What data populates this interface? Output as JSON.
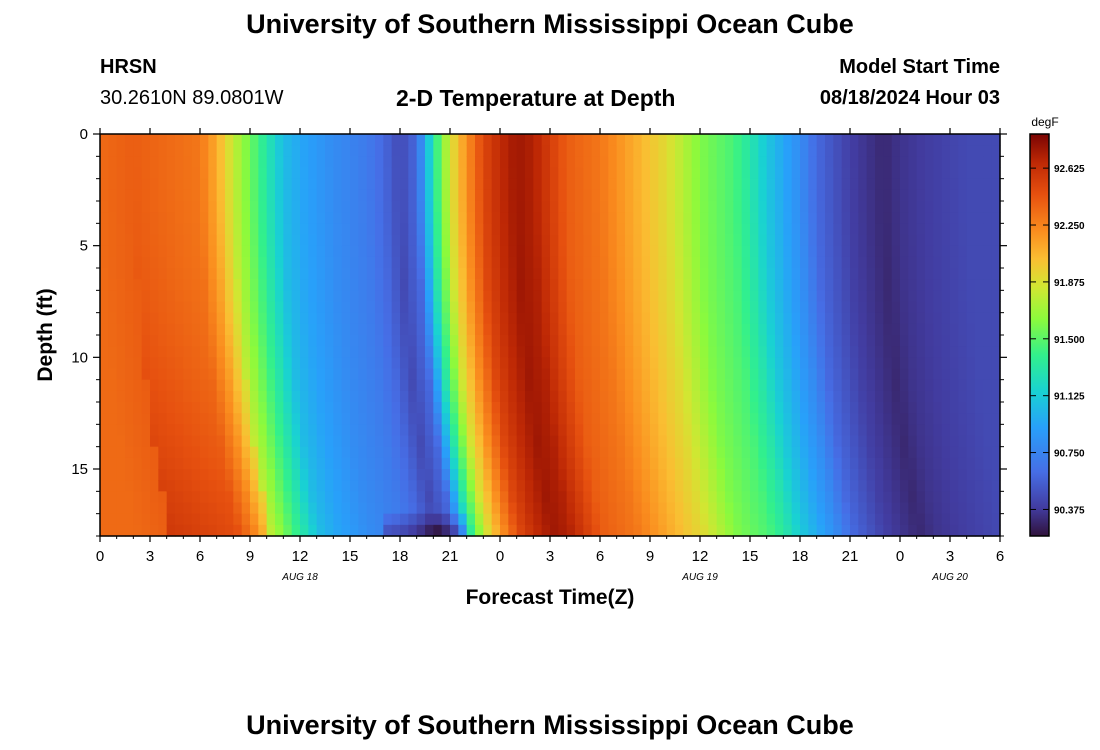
{
  "page": {
    "title": "University of Southern Mississippi Ocean Cube",
    "bottom_title": "University of Southern Mississippi Ocean Cube",
    "station": "HRSN",
    "coords": "30.2610N  89.0801W",
    "plot_title": "2-D Temperature at Depth",
    "model_start_label": "Model Start Time",
    "model_start_value": "08/18/2024 Hour 03"
  },
  "chart_data": {
    "type": "heatmap",
    "title": "2-D Temperature at Depth",
    "xlabel": "Forecast Time(Z)",
    "ylabel": "Depth (ft)",
    "x_range_hours": [
      0,
      54
    ],
    "y_range_ft": [
      0,
      18
    ],
    "y_inverted": true,
    "x_tick_labels": [
      "0",
      "3",
      "6",
      "9",
      "12",
      "15",
      "18",
      "21",
      "0",
      "3",
      "6",
      "9",
      "12",
      "15",
      "18",
      "21",
      "0",
      "3",
      "6"
    ],
    "y_ticks": [
      0,
      5,
      10,
      15
    ],
    "date_labels": [
      {
        "label": "AUG 18",
        "hour": 12
      },
      {
        "label": "AUG 19",
        "hour": 36
      },
      {
        "label": "AUG 20",
        "hour": 51
      }
    ],
    "colorbar": {
      "unit": "degF",
      "range": [
        90.2,
        92.85
      ],
      "ticks": [
        90.375,
        90.75,
        91.125,
        91.5,
        91.875,
        92.25,
        92.625
      ],
      "tick_labels": [
        "90.375",
        "90.750",
        "91.125",
        "91.500",
        "91.875",
        "92.250",
        "92.625"
      ]
    },
    "surface_temperature_by_hour": [
      {
        "hour": 0,
        "value": 92.35
      },
      {
        "hour": 2,
        "value": 92.4
      },
      {
        "hour": 4,
        "value": 92.35
      },
      {
        "hour": 6,
        "value": 92.3
      },
      {
        "hour": 7,
        "value": 92.1
      },
      {
        "hour": 8,
        "value": 91.8
      },
      {
        "hour": 9,
        "value": 91.55
      },
      {
        "hour": 10,
        "value": 91.3
      },
      {
        "hour": 11,
        "value": 91.05
      },
      {
        "hour": 12,
        "value": 90.95
      },
      {
        "hour": 14,
        "value": 90.8
      },
      {
        "hour": 16,
        "value": 90.7
      },
      {
        "hour": 17,
        "value": 90.6
      },
      {
        "hour": 18,
        "value": 90.45
      },
      {
        "hour": 19,
        "value": 90.6
      },
      {
        "hour": 20,
        "value": 91.3
      },
      {
        "hour": 21,
        "value": 91.85
      },
      {
        "hour": 22,
        "value": 92.2
      },
      {
        "hour": 23,
        "value": 92.5
      },
      {
        "hour": 24,
        "value": 92.65
      },
      {
        "hour": 25,
        "value": 92.75
      },
      {
        "hour": 26,
        "value": 92.7
      },
      {
        "hour": 27,
        "value": 92.55
      },
      {
        "hour": 28,
        "value": 92.4
      },
      {
        "hour": 30,
        "value": 92.3
      },
      {
        "hour": 32,
        "value": 92.1
      },
      {
        "hour": 34,
        "value": 91.9
      },
      {
        "hour": 35,
        "value": 91.75
      },
      {
        "hour": 36,
        "value": 91.6
      },
      {
        "hour": 38,
        "value": 91.45
      },
      {
        "hour": 39,
        "value": 91.3
      },
      {
        "hour": 40,
        "value": 91.1
      },
      {
        "hour": 41,
        "value": 90.95
      },
      {
        "hour": 42,
        "value": 90.8
      },
      {
        "hour": 43,
        "value": 90.6
      },
      {
        "hour": 44,
        "value": 90.5
      },
      {
        "hour": 45,
        "value": 90.4
      },
      {
        "hour": 46,
        "value": 90.35
      },
      {
        "hour": 47,
        "value": 90.3
      },
      {
        "hour": 48,
        "value": 90.35
      },
      {
        "hour": 50,
        "value": 90.4
      },
      {
        "hour": 52,
        "value": 90.45
      },
      {
        "hour": 54,
        "value": 90.45
      }
    ]
  }
}
